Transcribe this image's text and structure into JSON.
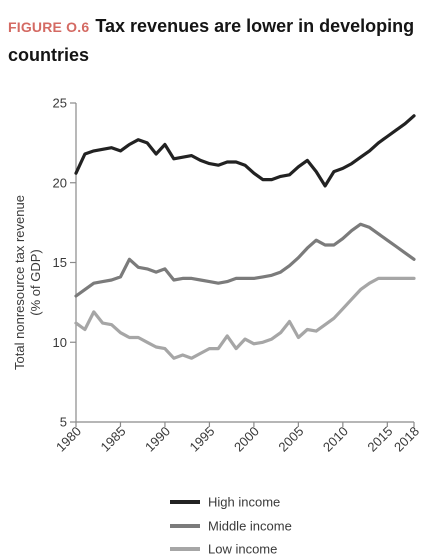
{
  "figure": {
    "label": "FIGURE O.6",
    "title": "Tax revenues are lower in developing countries"
  },
  "chart_data": {
    "type": "line",
    "title": "",
    "ylabel_lines": [
      "Total nonresource tax revenue",
      "(% of GDP)"
    ],
    "xlabel": "",
    "xlim": [
      1980,
      2018
    ],
    "ylim": [
      5,
      25
    ],
    "yticks": [
      5,
      10,
      15,
      20,
      25
    ],
    "xticks": [
      1980,
      1985,
      1990,
      1995,
      2000,
      2005,
      2010,
      2015,
      2018
    ],
    "grid": false,
    "legend_position": "bottom",
    "x": [
      1980,
      1981,
      1982,
      1983,
      1984,
      1985,
      1986,
      1987,
      1988,
      1989,
      1990,
      1991,
      1992,
      1993,
      1994,
      1995,
      1996,
      1997,
      1998,
      1999,
      2000,
      2001,
      2002,
      2003,
      2004,
      2005,
      2006,
      2007,
      2008,
      2009,
      2010,
      2011,
      2012,
      2013,
      2014,
      2015,
      2016,
      2017,
      2018
    ],
    "series": [
      {
        "name": "High income",
        "color": "#222222",
        "values": [
          20.6,
          21.8,
          22.0,
          22.1,
          22.2,
          22.0,
          22.4,
          22.7,
          22.5,
          21.8,
          22.4,
          21.5,
          21.6,
          21.7,
          21.4,
          21.2,
          21.1,
          21.3,
          21.3,
          21.1,
          20.6,
          20.2,
          20.2,
          20.4,
          20.5,
          21.0,
          21.4,
          20.7,
          19.8,
          20.7,
          20.9,
          21.2,
          21.6,
          22.0,
          22.5,
          22.9,
          23.3,
          23.7,
          24.2
        ]
      },
      {
        "name": "Middle income",
        "color": "#7b7b7b",
        "values": [
          12.9,
          13.3,
          13.7,
          13.8,
          13.9,
          14.1,
          15.2,
          14.7,
          14.6,
          14.4,
          14.6,
          13.9,
          14.0,
          14.0,
          13.9,
          13.8,
          13.7,
          13.8,
          14.0,
          14.0,
          14.0,
          14.1,
          14.2,
          14.4,
          14.8,
          15.3,
          15.9,
          16.4,
          16.1,
          16.1,
          16.5,
          17.0,
          17.4,
          17.2,
          16.8,
          16.4,
          16.0,
          15.6,
          15.2
        ]
      },
      {
        "name": "Low income",
        "color": "#a6a6a6",
        "values": [
          11.2,
          10.8,
          11.9,
          11.2,
          11.1,
          10.6,
          10.3,
          10.3,
          10.0,
          9.7,
          9.6,
          9.0,
          9.2,
          9.0,
          9.3,
          9.6,
          9.6,
          10.4,
          9.6,
          10.2,
          9.9,
          10.0,
          10.2,
          10.6,
          11.3,
          10.3,
          10.8,
          10.7,
          11.1,
          11.5,
          12.1,
          12.7,
          13.3,
          13.7,
          14.0,
          14.0,
          14.0,
          14.0,
          14.0
        ]
      }
    ]
  }
}
